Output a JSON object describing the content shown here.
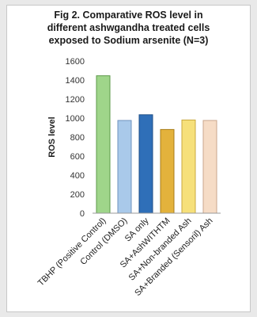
{
  "chart_data": {
    "type": "bar",
    "title_lines": [
      "Fig 2. Comparative ROS level in",
      "different ashwgandha treated cells",
      "exposed to Sodium arsenite (N=3)"
    ],
    "ylabel": "ROS level",
    "xlabel": "",
    "ylim": [
      0,
      1600
    ],
    "yticks": [
      0,
      200,
      400,
      600,
      800,
      1000,
      1200,
      1400,
      1600
    ],
    "grid": false,
    "categories": [
      "TBHP (Positive Control)",
      "Control (DMSO)",
      "SA only",
      "SA+AshWITHTM",
      "SA+Non-branded Ash",
      "SA+Branded (Sensoril) Ash"
    ],
    "values": [
      1445,
      975,
      1035,
      880,
      980,
      975
    ],
    "colors": [
      "#9fd58a",
      "#a9c9ea",
      "#2f6fb8",
      "#e3b23c",
      "#f6e07a",
      "#f6dcc6"
    ],
    "edge_colors": [
      "#5e9a4a",
      "#6f93bf",
      "#1f4f87",
      "#a87c18",
      "#c9a93d",
      "#c9a68c"
    ]
  }
}
